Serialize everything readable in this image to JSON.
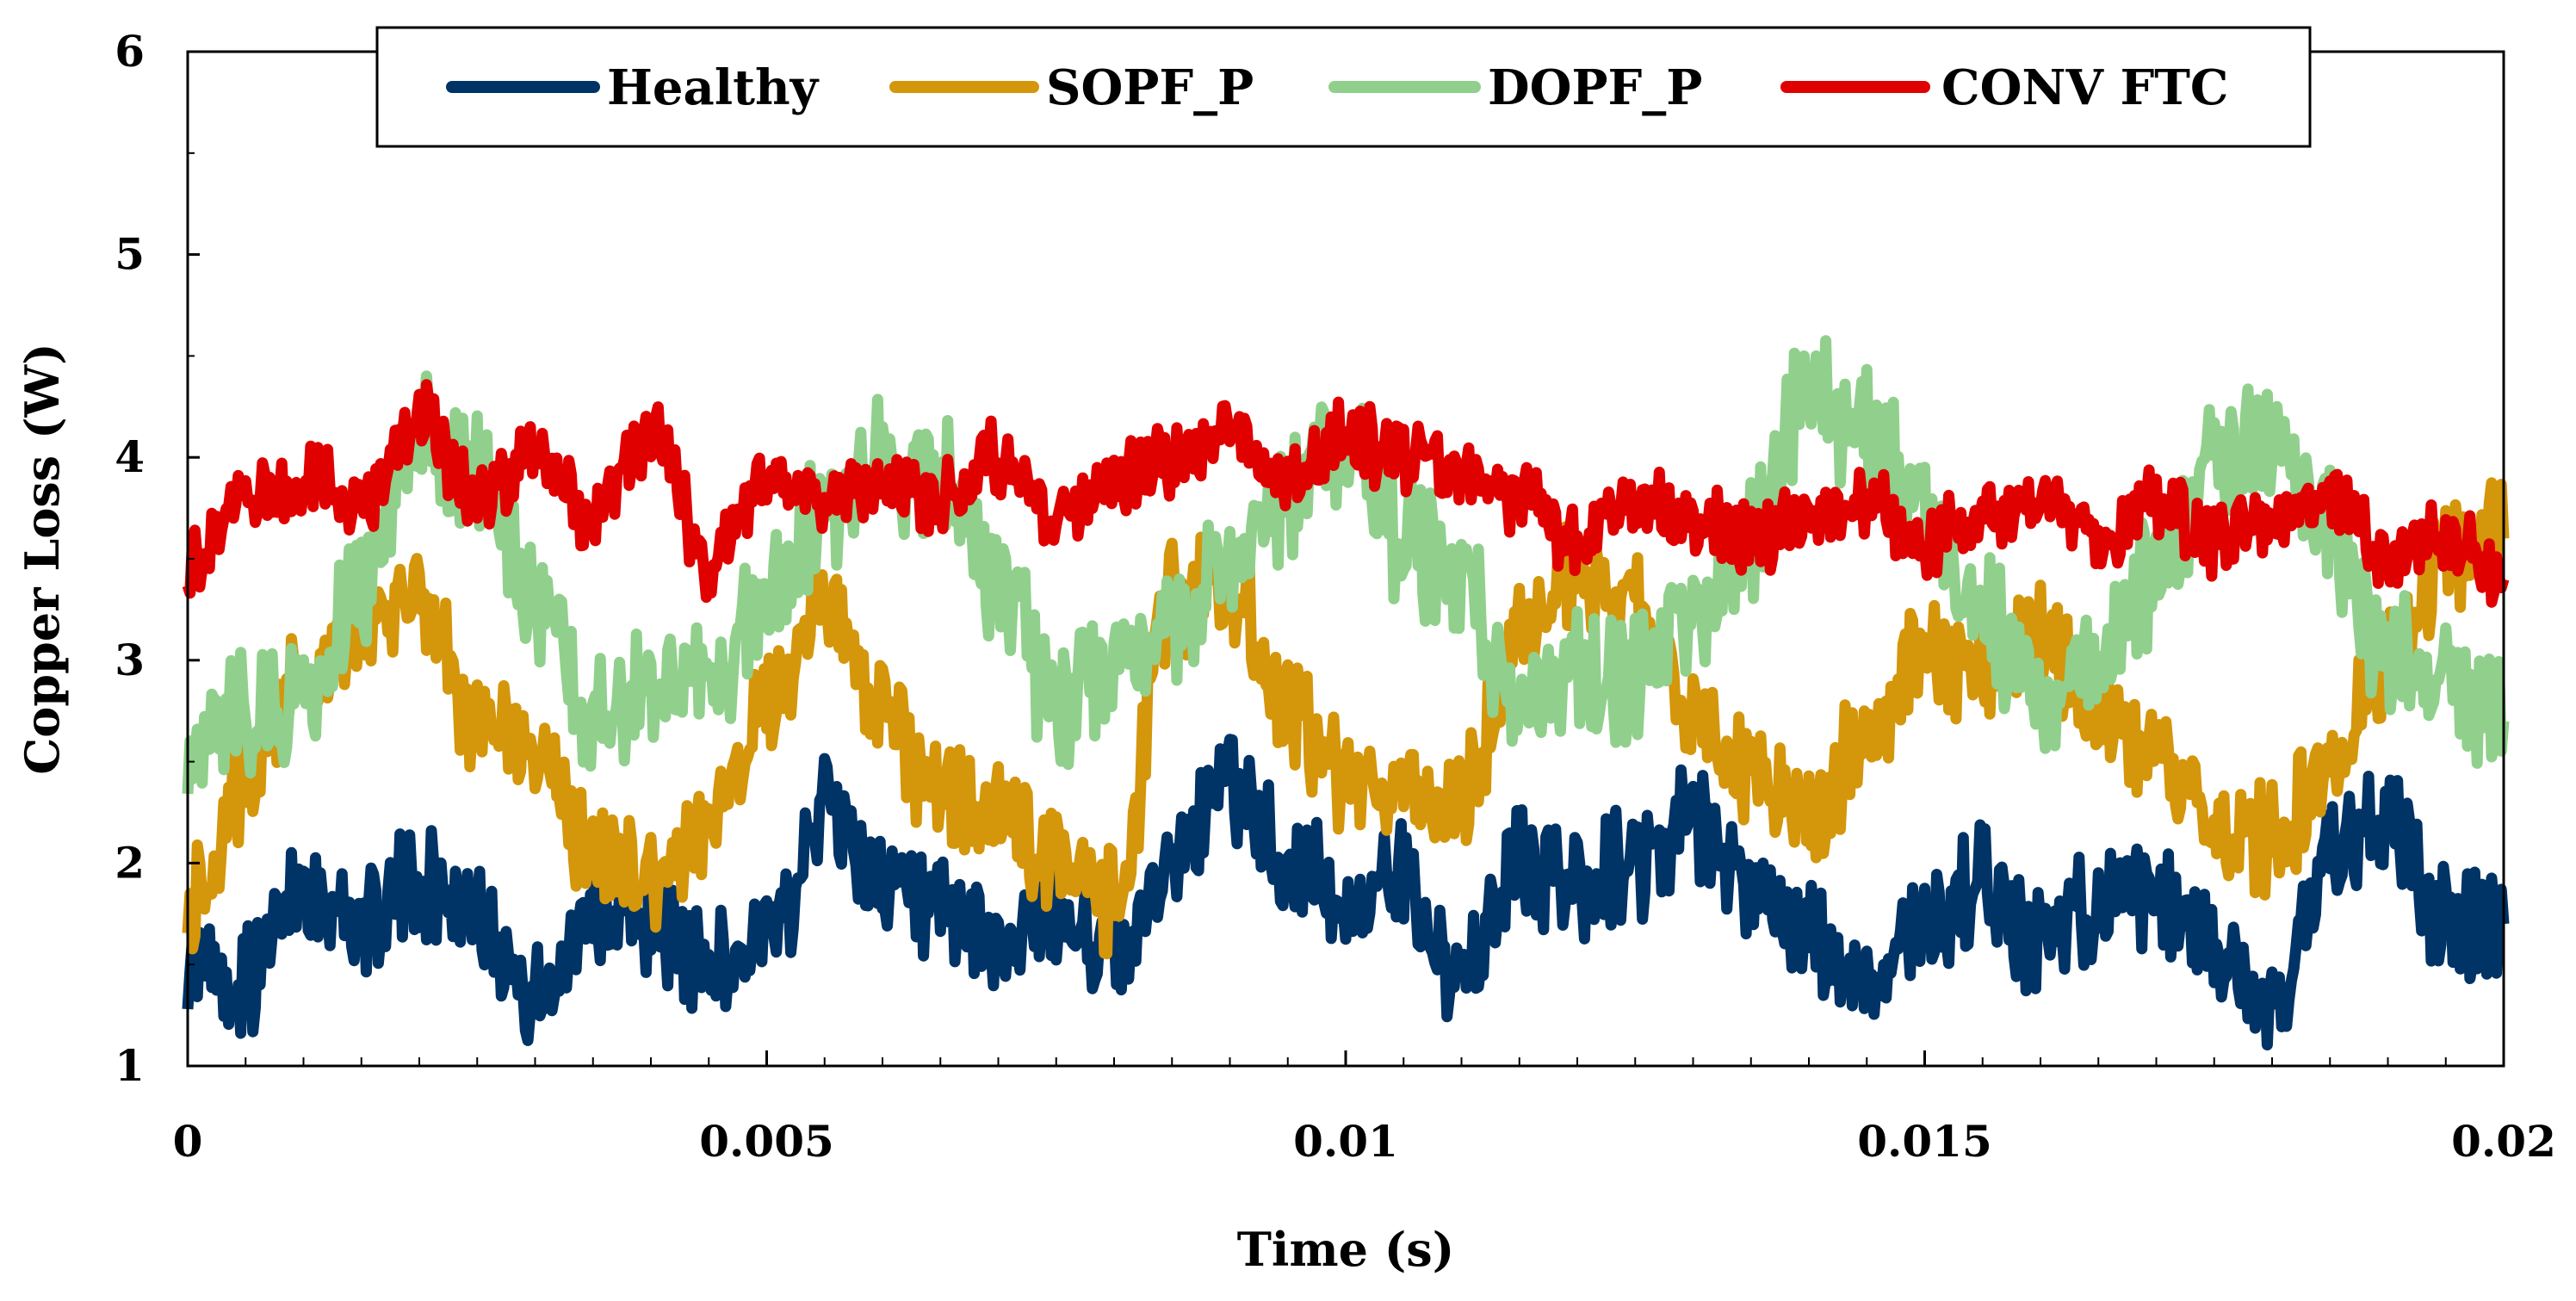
{
  "chart_data": {
    "type": "line",
    "title": "",
    "xlabel": "Time (s)",
    "ylabel": "Copper Loss (W)",
    "xlim": [
      0,
      0.02
    ],
    "ylim": [
      1,
      6
    ],
    "xticks": [
      0,
      0.005,
      0.01,
      0.015,
      0.02
    ],
    "xtick_labels": [
      "0",
      "0.005",
      "0.01",
      "0.015",
      "0.02"
    ],
    "yticks": [
      1,
      2,
      3,
      4,
      5,
      6
    ],
    "ytick_labels": [
      "1",
      "2",
      "3",
      "4",
      "5",
      "6"
    ],
    "grid": false,
    "legend_position": "top",
    "x": [
      0,
      0.0005,
      0.001,
      0.0015,
      0.002,
      0.0025,
      0.003,
      0.0035,
      0.004,
      0.0045,
      0.005,
      0.0055,
      0.006,
      0.0065,
      0.007,
      0.0075,
      0.008,
      0.0085,
      0.009,
      0.0095,
      0.01,
      0.0105,
      0.011,
      0.0115,
      0.012,
      0.0125,
      0.013,
      0.0135,
      0.014,
      0.0145,
      0.015,
      0.0155,
      0.016,
      0.0165,
      0.017,
      0.0175,
      0.018,
      0.0185,
      0.019,
      0.0195,
      0.02
    ],
    "series": [
      {
        "name": "Healthy",
        "color": "#003366",
        "values": [
          1.5,
          1.4,
          1.9,
          1.7,
          1.9,
          1.8,
          1.3,
          1.8,
          1.7,
          1.5,
          1.6,
          2.3,
          1.9,
          1.7,
          1.6,
          1.7,
          1.5,
          2.0,
          2.4,
          2.0,
          1.8,
          1.9,
          1.4,
          2.0,
          1.9,
          2.0,
          2.2,
          1.8,
          1.6,
          1.4,
          1.7,
          1.9,
          1.6,
          1.8,
          1.8,
          1.6,
          1.3,
          2.0,
          2.2,
          1.7,
          1.7
        ]
      },
      {
        "name": "SOPF_P",
        "color": "#D4960A",
        "values": [
          1.8,
          2.4,
          2.9,
          3.1,
          3.3,
          2.7,
          2.5,
          2.0,
          1.9,
          2.2,
          2.8,
          3.3,
          2.7,
          2.3,
          2.2,
          2.0,
          1.8,
          3.3,
          3.4,
          2.7,
          2.4,
          2.4,
          2.3,
          3.1,
          3.4,
          3.3,
          2.7,
          2.4,
          2.2,
          2.6,
          3.1,
          2.9,
          3.1,
          2.7,
          2.5,
          2.2,
          2.1,
          2.5,
          3.0,
          3.5,
          3.6
        ]
      },
      {
        "name": "DOPF_P",
        "color": "#90D08C",
        "values": [
          2.5,
          2.7,
          2.8,
          3.4,
          4.1,
          3.9,
          3.3,
          2.7,
          2.9,
          2.9,
          3.3,
          3.7,
          4.0,
          3.9,
          3.4,
          2.8,
          3.0,
          3.2,
          3.5,
          3.8,
          4.1,
          3.6,
          3.4,
          2.8,
          2.9,
          2.9,
          3.2,
          3.6,
          4.3,
          4.1,
          3.7,
          3.2,
          2.8,
          3.0,
          3.4,
          4.0,
          4.1,
          3.6,
          3.0,
          2.9,
          2.7
        ]
      },
      {
        "name": "CONV FTC",
        "color": "#E00000",
        "values": [
          3.5,
          3.8,
          3.9,
          3.8,
          4.2,
          3.8,
          4.0,
          3.7,
          4.1,
          3.5,
          3.9,
          3.8,
          3.9,
          3.8,
          4.0,
          3.7,
          3.9,
          4.0,
          4.1,
          3.9,
          4.1,
          4.0,
          3.9,
          3.8,
          3.6,
          3.8,
          3.7,
          3.6,
          3.7,
          3.8,
          3.6,
          3.7,
          3.8,
          3.6,
          3.8,
          3.6,
          3.7,
          3.8,
          3.5,
          3.6,
          3.4
        ]
      }
    ]
  }
}
